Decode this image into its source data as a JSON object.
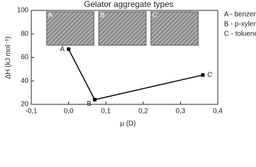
{
  "chart_data": {
    "type": "line",
    "title": "Gelator aggregate types",
    "x_label": "μ (D)",
    "y_label": "ΔH (kJ mol⁻¹)",
    "x": [
      0,
      0.07,
      0.36
    ],
    "series": [
      {
        "name": null,
        "color": "#000000",
        "values": [
          67,
          24,
          45
        ]
      }
    ],
    "point_labels": [
      "A",
      "B",
      "C"
    ],
    "legend_notes": [
      "A - benzene",
      "B - p-xylene",
      "C - toluene"
    ],
    "inset_labels": [
      "A",
      "B",
      "C"
    ],
    "xlim": [
      -0.1,
      0.4
    ],
    "xticks": [
      {
        "value": -0.1,
        "label": "-0,1"
      },
      {
        "value": 0,
        "label": "0,0"
      },
      {
        "value": 0.1,
        "label": "0,1"
      },
      {
        "value": 0.2,
        "label": "0,2"
      },
      {
        "value": 0.3,
        "label": "0,3"
      },
      {
        "value": 0.4,
        "label": "0,4"
      }
    ],
    "ylim": [
      20,
      100
    ],
    "yticks": [
      20,
      40,
      60,
      80,
      100
    ]
  }
}
